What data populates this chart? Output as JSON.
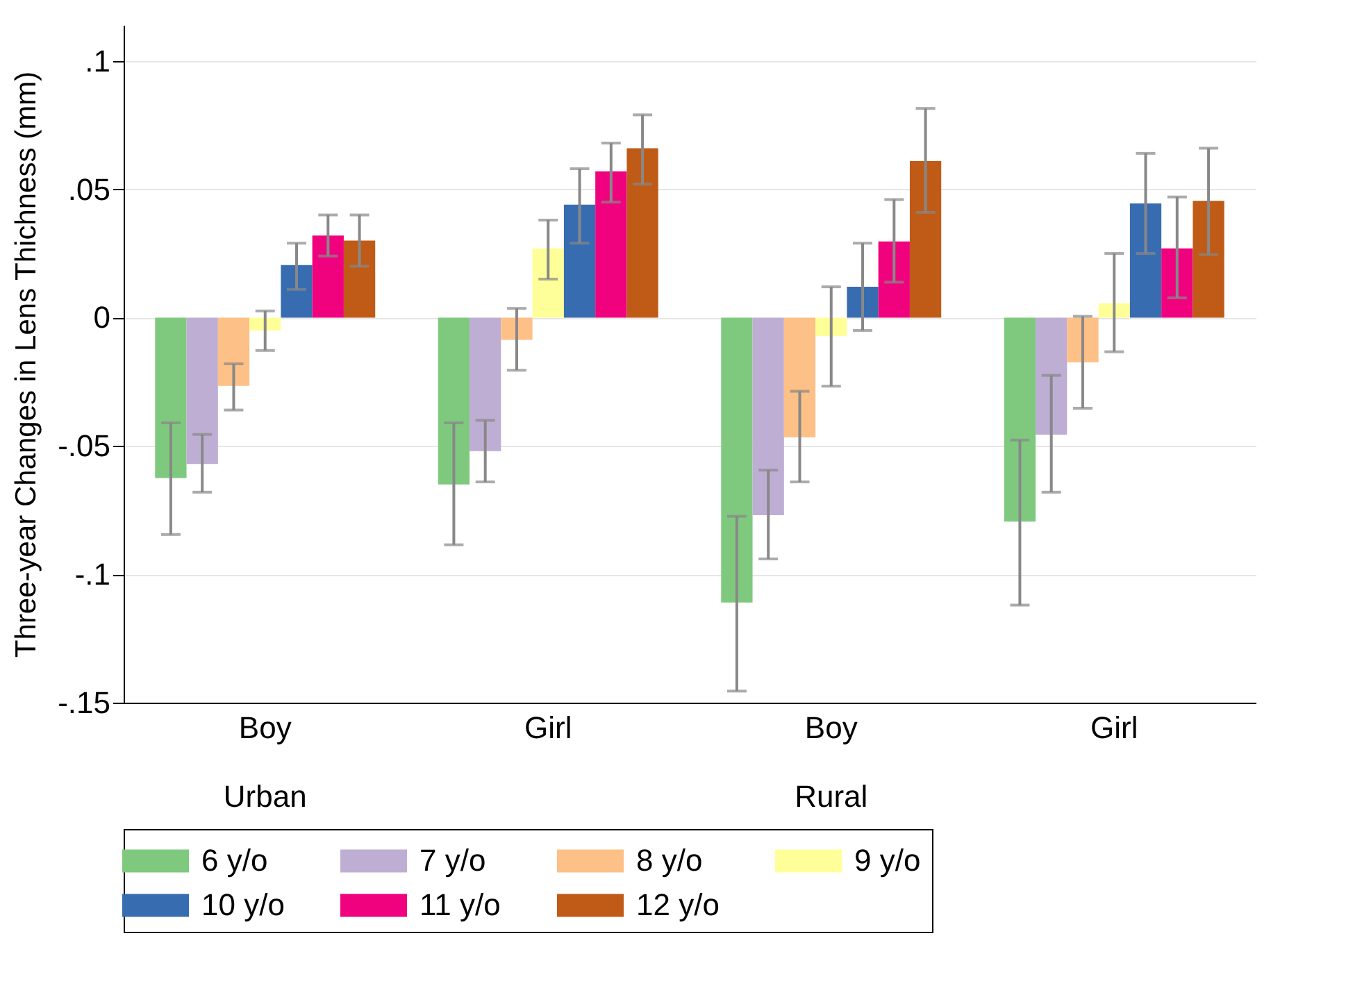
{
  "chart_data": {
    "type": "bar",
    "ylabel": "Three-year Changes in Lens Thichness (mm)",
    "categories": [
      "Boy",
      "Girl",
      "Boy",
      "Girl"
    ],
    "annotations": [
      "Urban",
      "Rural"
    ],
    "series": [
      {
        "name": "6 y/o",
        "color": "#7fc97f",
        "values": [
          -0.0625,
          -0.065,
          -0.111,
          -0.0795
        ],
        "errors": [
          [
            -0.0845,
            -0.041
          ],
          [
            -0.0885,
            -0.041
          ],
          [
            -0.1455,
            -0.0774
          ],
          [
            -0.112,
            -0.0477
          ]
        ]
      },
      {
        "name": "7 y/o",
        "color": "#beaed4",
        "values": [
          -0.057,
          -0.052,
          -0.077,
          -0.0456
        ],
        "errors": [
          [
            -0.068,
            -0.0455
          ],
          [
            -0.064,
            -0.04
          ],
          [
            -0.094,
            -0.0594
          ],
          [
            -0.068,
            -0.0225
          ]
        ]
      },
      {
        "name": "8 y/o",
        "color": "#fdc086",
        "values": [
          -0.0266,
          -0.0087,
          -0.0466,
          -0.0174
        ],
        "errors": [
          [
            -0.036,
            -0.018
          ],
          [
            -0.0205,
            0.0036
          ],
          [
            -0.064,
            -0.0287
          ],
          [
            -0.0353,
            0.0005
          ]
        ]
      },
      {
        "name": "9 y/o",
        "color": "#ffff99",
        "values": [
          -0.005,
          0.027,
          -0.0072,
          0.0056
        ],
        "errors": [
          [
            -0.0128,
            0.0026
          ],
          [
            0.015,
            0.038
          ],
          [
            -0.0267,
            0.012
          ],
          [
            -0.0133,
            0.025
          ]
        ]
      },
      {
        "name": "10 y/o",
        "color": "#386cb0",
        "values": [
          0.0205,
          0.044,
          0.012,
          0.0445
        ],
        "errors": [
          [
            0.011,
            0.029
          ],
          [
            0.029,
            0.058
          ],
          [
            -0.005,
            0.029
          ],
          [
            0.025,
            0.064
          ]
        ]
      },
      {
        "name": "11 y/o",
        "color": "#f0027f",
        "values": [
          0.032,
          0.057,
          0.0297,
          0.027
        ],
        "errors": [
          [
            0.024,
            0.04
          ],
          [
            0.045,
            0.068
          ],
          [
            0.0138,
            0.046
          ],
          [
            0.0077,
            0.047
          ]
        ]
      },
      {
        "name": "12 y/o",
        "color": "#bf5b17",
        "values": [
          0.03,
          0.066,
          0.061,
          0.0455
        ],
        "errors": [
          [
            0.02,
            0.04
          ],
          [
            0.052,
            0.079
          ],
          [
            0.041,
            0.0815
          ],
          [
            0.0246,
            0.066
          ]
        ]
      }
    ],
    "ylim": [
      -0.15,
      0.114
    ],
    "yticks": [
      {
        "value": -0.15,
        "label": "-.15"
      },
      {
        "value": -0.1,
        "label": "-.1"
      },
      {
        "value": -0.05,
        "label": "-.05"
      },
      0,
      {
        "value": 0.05,
        "label": ".05"
      },
      {
        "value": 0.1,
        "label": ".1"
      }
    ],
    "grid": "y",
    "legend": "bottom"
  }
}
